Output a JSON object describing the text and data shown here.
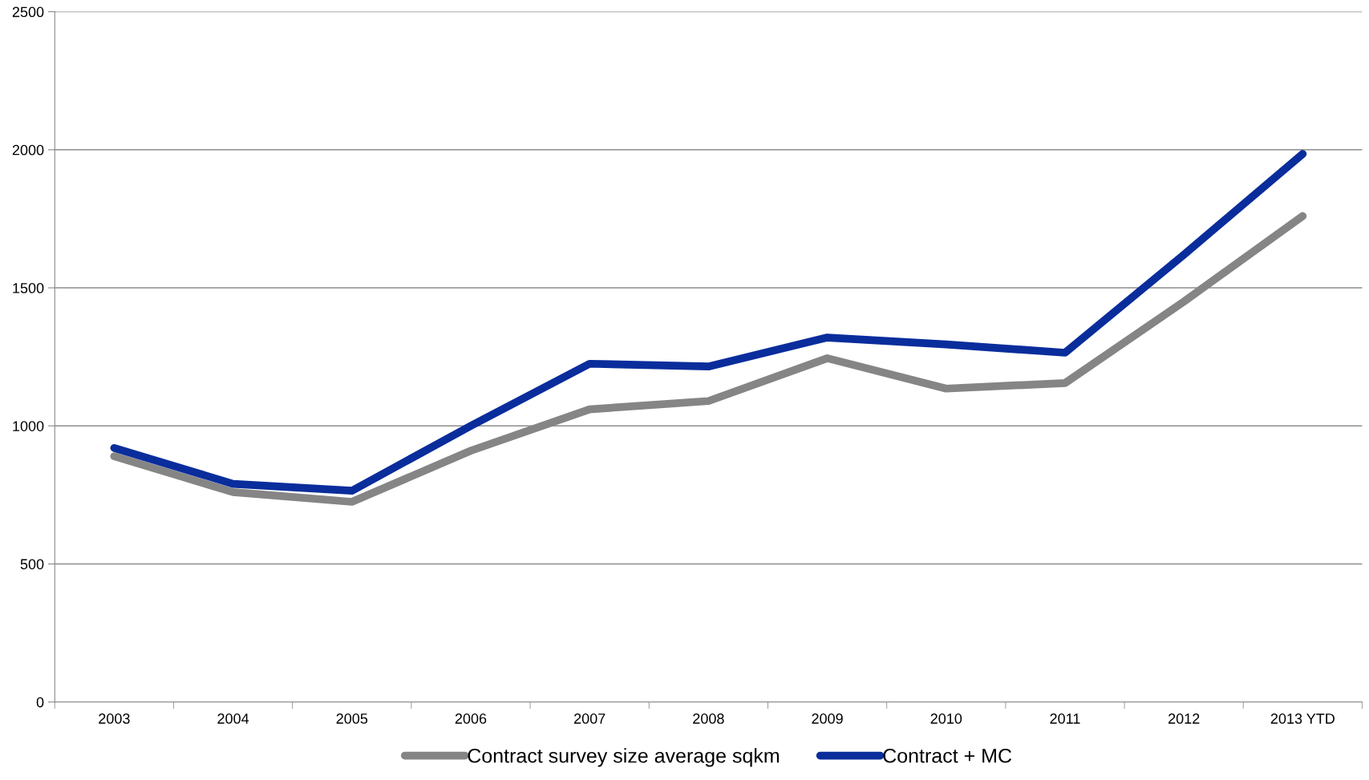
{
  "chart_data": {
    "type": "line",
    "categories": [
      "2003",
      "2004",
      "2005",
      "2006",
      "2007",
      "2008",
      "2009",
      "2010",
      "2011",
      "2012",
      "2013 YTD"
    ],
    "series": [
      {
        "name": "Contract survey size average sqkm",
        "color": "#858585",
        "values": [
          890,
          760,
          725,
          910,
          1060,
          1090,
          1245,
          1135,
          1155,
          1450,
          1760
        ]
      },
      {
        "name": "Contract + MC",
        "color": "#0a2d9c",
        "values": [
          920,
          790,
          765,
          1000,
          1225,
          1215,
          1320,
          1295,
          1265,
          1620,
          1985
        ]
      }
    ],
    "ylim": [
      0,
      2500
    ],
    "yticks": [
      0,
      500,
      1000,
      1500,
      2000,
      2500
    ],
    "grid": "y",
    "legend": "bottom",
    "marker": "none",
    "line_style": "solid"
  }
}
